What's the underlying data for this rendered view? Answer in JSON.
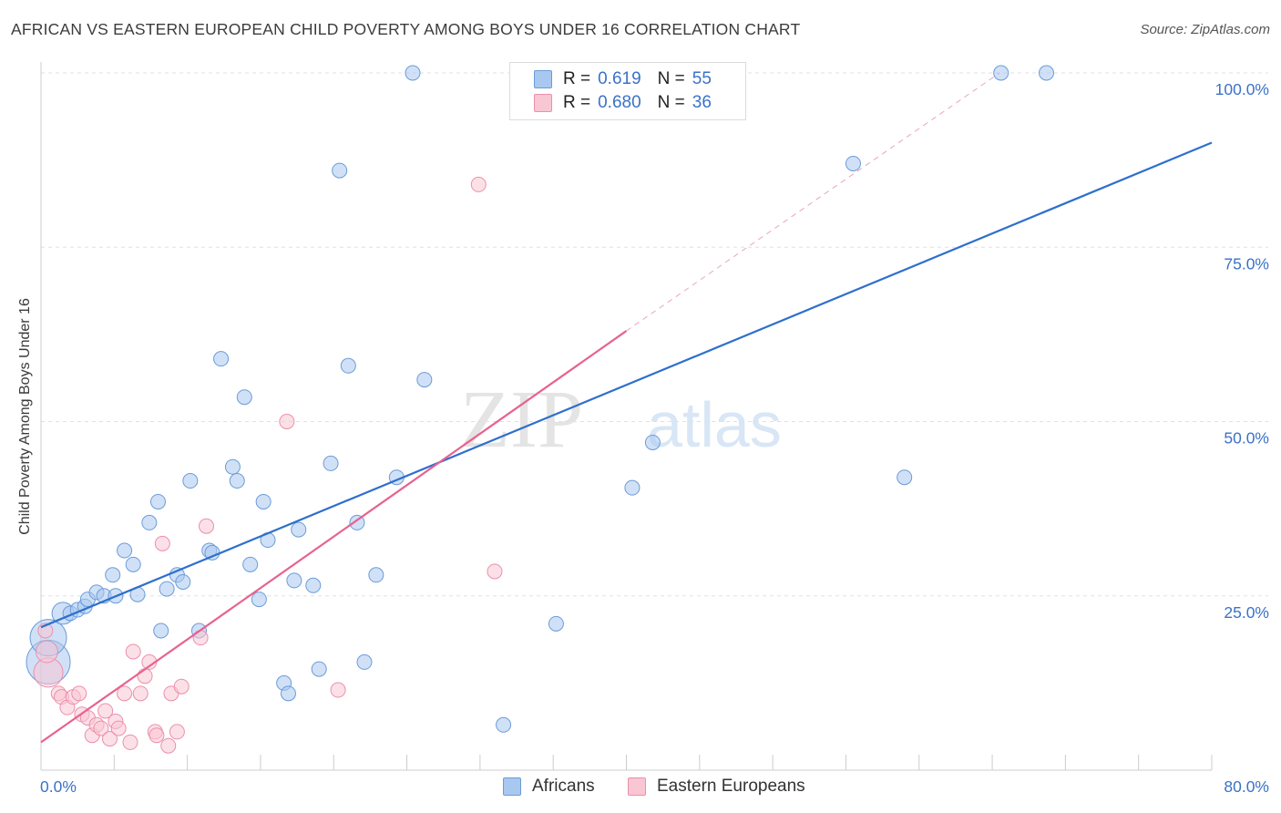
{
  "chart_data": {
    "type": "scatter",
    "title": "AFRICAN VS EASTERN EUROPEAN CHILD POVERTY AMONG BOYS UNDER 16 CORRELATION CHART",
    "source": "Source: ZipAtlas.com",
    "ylabel": "Child Poverty Among Boys Under 16",
    "xlim": [
      0,
      80
    ],
    "ylim": [
      0,
      100
    ],
    "x_tick_labels": [
      {
        "value": 0,
        "label": "0.0%"
      },
      {
        "value": 80,
        "label": "80.0%"
      }
    ],
    "y_tick_labels": [
      {
        "value": 25,
        "label": "25.0%"
      },
      {
        "value": 50,
        "label": "50.0%"
      },
      {
        "value": 75,
        "label": "75.0%"
      },
      {
        "value": 100,
        "label": "100.0%"
      }
    ],
    "grid": "horizontal dashed",
    "legend_placement": "top-center",
    "watermark": "ZIPatlas",
    "series": [
      {
        "name": "Africans",
        "color": "#a9c8f0",
        "stroke": "#6b9bd8",
        "line_color": "#2e6fcc",
        "R": "0.619",
        "N": "55",
        "trend": {
          "x": [
            0,
            80
          ],
          "y": [
            20.5,
            90
          ]
        },
        "points": [
          [
            0.5,
            15.5,
            3
          ],
          [
            0.5,
            19,
            2.5
          ],
          [
            1.5,
            22.5,
            1.5
          ],
          [
            2,
            22.5,
            1
          ],
          [
            2.5,
            23,
            1
          ],
          [
            3,
            23.5,
            1
          ],
          [
            3.2,
            24.5,
            1
          ],
          [
            3.8,
            25.5,
            1
          ],
          [
            4.3,
            25,
            1
          ],
          [
            5.1,
            25,
            1
          ],
          [
            4.9,
            28,
            1
          ],
          [
            5.7,
            31.5,
            1
          ],
          [
            6.3,
            29.5,
            1
          ],
          [
            6.6,
            25.2,
            1
          ],
          [
            7.4,
            35.5,
            1
          ],
          [
            8,
            38.5,
            1
          ],
          [
            8.2,
            20,
            1
          ],
          [
            8.6,
            26,
            1
          ],
          [
            9.3,
            28,
            1
          ],
          [
            9.7,
            27,
            1
          ],
          [
            10.2,
            41.5,
            1
          ],
          [
            10.8,
            20,
            1
          ],
          [
            11.5,
            31.5,
            1
          ],
          [
            11.7,
            31.2,
            1
          ],
          [
            12.3,
            59,
            1
          ],
          [
            13.1,
            43.5,
            1
          ],
          [
            13.4,
            41.5,
            1
          ],
          [
            13.9,
            53.5,
            1
          ],
          [
            14.3,
            29.5,
            1
          ],
          [
            14.9,
            24.5,
            1
          ],
          [
            15.2,
            38.5,
            1
          ],
          [
            15.5,
            33,
            1
          ],
          [
            16.6,
            12.5,
            1
          ],
          [
            16.9,
            11,
            1
          ],
          [
            17.3,
            27.2,
            1
          ],
          [
            17.6,
            34.5,
            1
          ],
          [
            18.6,
            26.5,
            1
          ],
          [
            19.0,
            14.5,
            1
          ],
          [
            19.8,
            44,
            1
          ],
          [
            20.4,
            86,
            1
          ],
          [
            21.0,
            58,
            1
          ],
          [
            21.6,
            35.5,
            1
          ],
          [
            22.1,
            15.5,
            1
          ],
          [
            22.9,
            28,
            1
          ],
          [
            24.3,
            42,
            1
          ],
          [
            25.4,
            100,
            1
          ],
          [
            26.2,
            56,
            1
          ],
          [
            31.6,
            6.5,
            1
          ],
          [
            35.2,
            21,
            1
          ],
          [
            40.4,
            40.5,
            1
          ],
          [
            41.8,
            47,
            1
          ],
          [
            55.5,
            87,
            1
          ],
          [
            59.0,
            42,
            1
          ],
          [
            65.6,
            100,
            1
          ],
          [
            68.7,
            100,
            1
          ]
        ]
      },
      {
        "name": "Eastern Europeans",
        "color": "#f9c6d4",
        "stroke": "#ec8fac",
        "line_color": "#e8628f",
        "R": "0.680",
        "N": "36",
        "trend": {
          "x": [
            0,
            40
          ],
          "y": [
            4,
            63
          ]
        },
        "trend_ext": {
          "x": [
            40,
            65.5
          ],
          "y": [
            63,
            100
          ]
        },
        "points": [
          [
            0.5,
            14,
            2
          ],
          [
            0.4,
            17,
            1.5
          ],
          [
            1.2,
            11,
            1
          ],
          [
            1.4,
            10.5,
            1
          ],
          [
            1.8,
            9,
            1
          ],
          [
            2.2,
            10.5,
            1
          ],
          [
            2.6,
            11,
            1
          ],
          [
            2.8,
            8,
            1
          ],
          [
            3.2,
            7.5,
            1
          ],
          [
            3.5,
            5,
            1
          ],
          [
            3.8,
            6.5,
            1
          ],
          [
            4.1,
            6,
            1
          ],
          [
            4.4,
            8.5,
            1
          ],
          [
            4.7,
            4.5,
            1
          ],
          [
            5.1,
            7,
            1
          ],
          [
            5.3,
            6,
            1
          ],
          [
            5.7,
            11,
            1
          ],
          [
            6.1,
            4,
            1
          ],
          [
            6.3,
            17,
            1
          ],
          [
            6.8,
            11,
            1
          ],
          [
            7.1,
            13.5,
            1
          ],
          [
            7.4,
            15.5,
            1
          ],
          [
            7.8,
            5.5,
            1
          ],
          [
            7.9,
            5,
            1
          ],
          [
            8.3,
            32.5,
            1
          ],
          [
            8.7,
            3.5,
            1
          ],
          [
            8.9,
            11,
            1
          ],
          [
            9.3,
            5.5,
            1
          ],
          [
            9.6,
            12,
            1
          ],
          [
            10.9,
            19,
            1
          ],
          [
            11.3,
            35,
            1
          ],
          [
            16.8,
            50,
            1
          ],
          [
            20.3,
            11.5,
            1
          ],
          [
            29.9,
            84,
            1
          ],
          [
            31.0,
            28.5,
            1
          ],
          [
            0.3,
            20,
            1
          ]
        ]
      }
    ]
  },
  "legend": {
    "r_label": "R =",
    "n_label": "N =",
    "rows": [
      {
        "r": "0.619",
        "n": "55"
      },
      {
        "r": "0.680",
        "n": "36"
      }
    ]
  },
  "bottom_legend": {
    "africans": "Africans",
    "eastern_europeans": "Eastern Europeans"
  }
}
